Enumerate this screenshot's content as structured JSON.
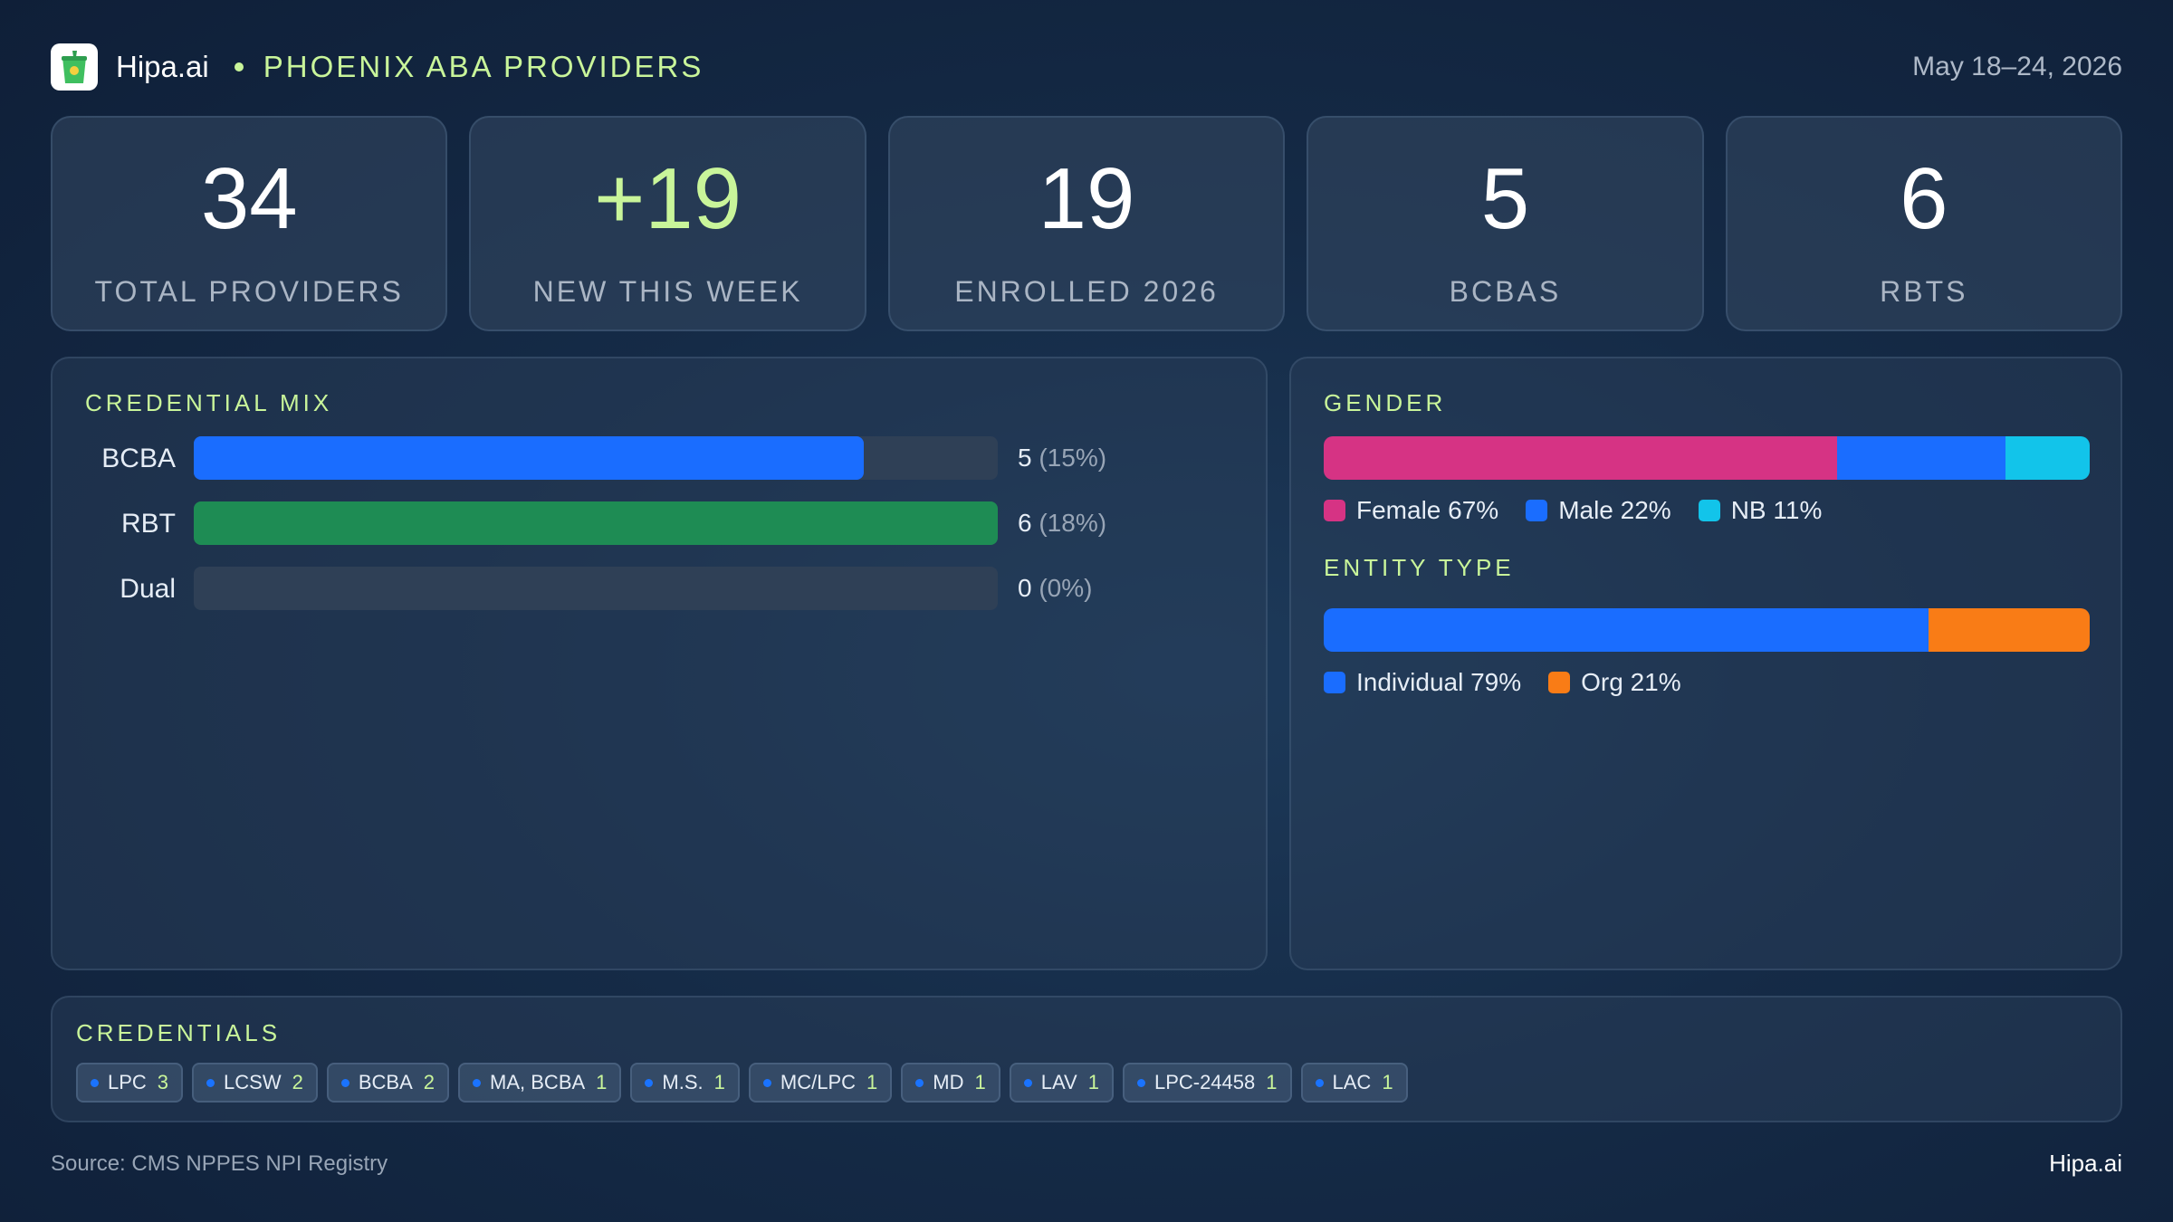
{
  "header": {
    "brand": "Hipa.ai",
    "subtitle": "PHOENIX ABA PROVIDERS",
    "date_range": "May 18–24, 2026",
    "logo_icon": "cup-icon"
  },
  "stats": [
    {
      "value": "34",
      "label": "TOTAL PROVIDERS",
      "accent": false
    },
    {
      "value": "+19",
      "label": "NEW THIS WEEK",
      "accent": true
    },
    {
      "value": "19",
      "label": "ENROLLED 2026",
      "accent": false
    },
    {
      "value": "5",
      "label": "BCBAS",
      "accent": false
    },
    {
      "value": "6",
      "label": "RBTS",
      "accent": false
    }
  ],
  "panels": {
    "credential_mix_title": "CREDENTIAL MIX",
    "gender_title": "GENDER",
    "entity_title": "ENTITY TYPE",
    "credentials_title": "CREDENTIALS"
  },
  "chart_data": [
    {
      "type": "bar",
      "orientation": "horizontal",
      "title": "CREDENTIAL MIX",
      "categories": [
        "BCBA",
        "RBT",
        "Dual"
      ],
      "values": [
        5,
        6,
        0
      ],
      "percent_labels": [
        "(15%)",
        "(18%)",
        "(0%)"
      ],
      "colors": [
        "#1a6dff",
        "#1e8c54",
        "#2f4056"
      ],
      "xlim": [
        0,
        6
      ]
    },
    {
      "type": "bar",
      "orientation": "stacked-horizontal",
      "title": "GENDER",
      "series": [
        {
          "name": "Female",
          "value": 67,
          "label": "Female 67%",
          "color": "#d63384"
        },
        {
          "name": "Male",
          "value": 22,
          "label": "Male 22%",
          "color": "#1a6dff"
        },
        {
          "name": "NB",
          "value": 11,
          "label": "NB 11%",
          "color": "#12c4ea"
        }
      ]
    },
    {
      "type": "bar",
      "orientation": "stacked-horizontal",
      "title": "ENTITY TYPE",
      "series": [
        {
          "name": "Individual",
          "value": 79,
          "label": "Individual 79%",
          "color": "#1a6dff"
        },
        {
          "name": "Org",
          "value": 21,
          "label": "Org 21%",
          "color": "#f97c16"
        }
      ]
    }
  ],
  "credentials": [
    {
      "name": "LPC",
      "count": "3"
    },
    {
      "name": "LCSW",
      "count": "2"
    },
    {
      "name": "BCBA",
      "count": "2"
    },
    {
      "name": "MA, BCBA",
      "count": "1"
    },
    {
      "name": "M.S.",
      "count": "1"
    },
    {
      "name": "MC/LPC",
      "count": "1"
    },
    {
      "name": "MD",
      "count": "1"
    },
    {
      "name": "LAV",
      "count": "1"
    },
    {
      "name": "LPC-24458",
      "count": "1"
    },
    {
      "name": "LAC",
      "count": "1"
    }
  ],
  "footer": {
    "source": "Source: CMS NPPES NPI Registry",
    "brand": "Hipa.ai"
  }
}
